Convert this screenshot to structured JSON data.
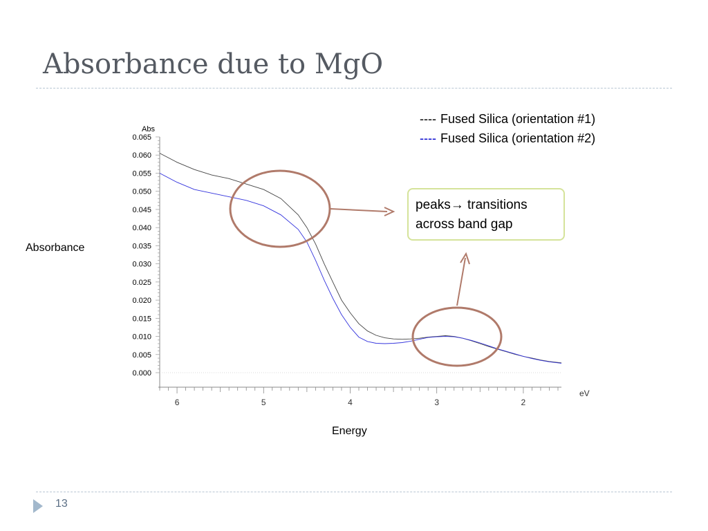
{
  "slide": {
    "title": "Absorbance due to MgO",
    "page_number": "13",
    "side_ylabel": "Absorbance",
    "bottom_xlabel": "Energy",
    "legend": [
      {
        "dash": "----",
        "text": "Fused Silica (orientation #1)",
        "color": "#000000"
      },
      {
        "dash": "----",
        "text": "Fused Silica (orientation #2)",
        "color": "#0000cc"
      }
    ],
    "callout": {
      "line1": "peaks",
      "arrow": "→",
      "line1_rest": " transitions",
      "line2": "across band gap"
    }
  },
  "chart_data": {
    "type": "line",
    "ylabel": "Abs",
    "xlabel": "eV",
    "xlim": [
      6.2,
      1.56
    ],
    "ylim": [
      -0.004,
      0.065
    ],
    "yticks": [
      "0.065",
      "0.060",
      "0.055",
      "0.050",
      "0.045",
      "0.040",
      "0.035",
      "0.030",
      "0.025",
      "0.020",
      "0.015",
      "0.010",
      "0.005",
      "0.000"
    ],
    "xticks": [
      "6",
      "5",
      "4",
      "3",
      "2"
    ],
    "series": [
      {
        "name": "Fused Silica (orientation #1)",
        "color": "#444444",
        "x": [
          6.2,
          6.0,
          5.8,
          5.6,
          5.4,
          5.2,
          5.0,
          4.8,
          4.6,
          4.5,
          4.4,
          4.3,
          4.2,
          4.1,
          4.0,
          3.9,
          3.8,
          3.7,
          3.6,
          3.5,
          3.4,
          3.3,
          3.2,
          3.1,
          3.0,
          2.9,
          2.8,
          2.7,
          2.6,
          2.5,
          2.4,
          2.3,
          2.2,
          2.1,
          2.0,
          1.9,
          1.8,
          1.7,
          1.56
        ],
        "y": [
          0.0605,
          0.058,
          0.056,
          0.0545,
          0.0535,
          0.052,
          0.0505,
          0.048,
          0.0435,
          0.04,
          0.0355,
          0.03,
          0.025,
          0.02,
          0.0165,
          0.0135,
          0.0115,
          0.0103,
          0.0096,
          0.0093,
          0.0092,
          0.0093,
          0.0095,
          0.0098,
          0.01,
          0.0102,
          0.01,
          0.0095,
          0.0088,
          0.008,
          0.0072,
          0.0065,
          0.0058,
          0.0051,
          0.0045,
          0.004,
          0.0035,
          0.0031,
          0.0027
        ]
      },
      {
        "name": "Fused Silica (orientation #2)",
        "color": "#3333dd",
        "x": [
          6.2,
          6.0,
          5.8,
          5.6,
          5.4,
          5.2,
          5.0,
          4.8,
          4.6,
          4.5,
          4.4,
          4.3,
          4.2,
          4.1,
          4.0,
          3.9,
          3.8,
          3.7,
          3.6,
          3.5,
          3.4,
          3.3,
          3.2,
          3.1,
          3.0,
          2.9,
          2.8,
          2.7,
          2.6,
          2.5,
          2.4,
          2.3,
          2.2,
          2.1,
          2.0,
          1.9,
          1.8,
          1.7,
          1.56
        ],
        "y": [
          0.055,
          0.0525,
          0.0505,
          0.0495,
          0.0485,
          0.0475,
          0.046,
          0.0435,
          0.0395,
          0.036,
          0.031,
          0.0255,
          0.0205,
          0.016,
          0.0125,
          0.0098,
          0.0086,
          0.0081,
          0.008,
          0.0081,
          0.0083,
          0.0087,
          0.0092,
          0.0097,
          0.0099,
          0.01,
          0.0099,
          0.0095,
          0.0089,
          0.0082,
          0.0074,
          0.0066,
          0.0059,
          0.0052,
          0.0045,
          0.0039,
          0.0034,
          0.003,
          0.0026
        ]
      }
    ],
    "annotations": [
      {
        "type": "ellipse",
        "target": "absorption edge near 5 eV"
      },
      {
        "type": "ellipse",
        "target": "peak near 2.8 eV"
      }
    ],
    "grid": false
  }
}
